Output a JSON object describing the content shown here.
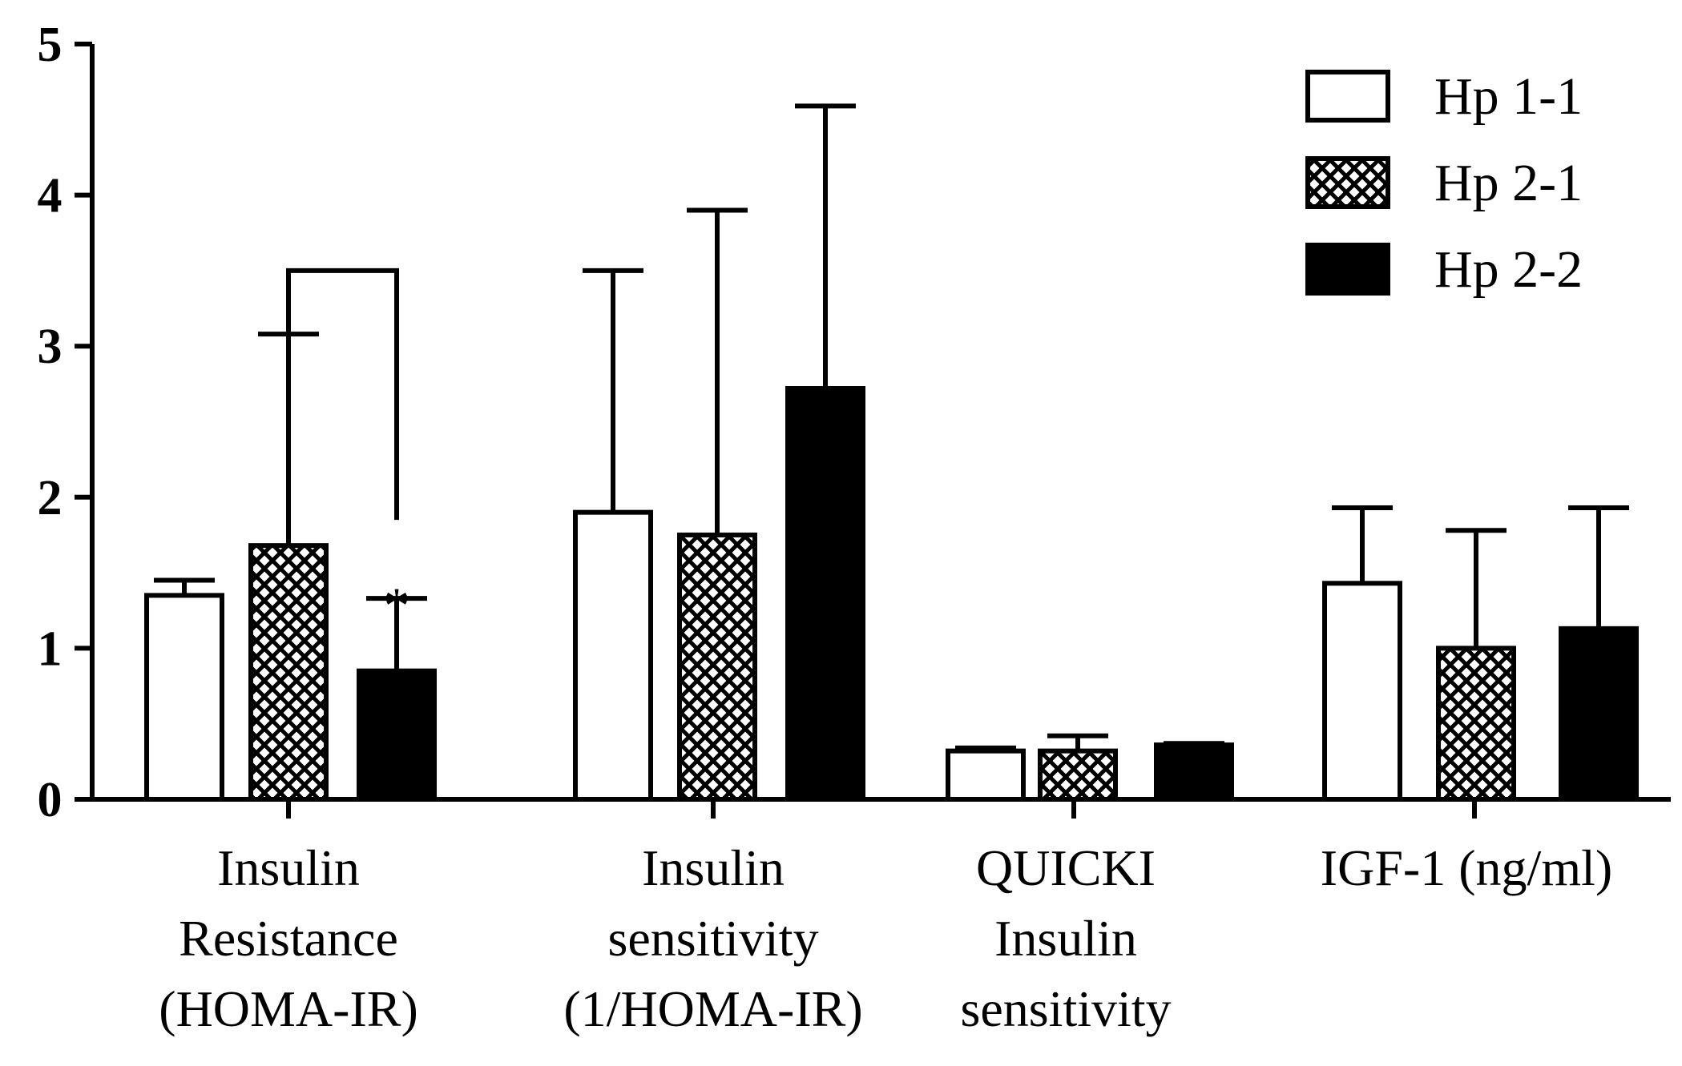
{
  "chart_data": {
    "type": "bar",
    "categories": [
      [
        "Insulin",
        "Resistance",
        "(HOMA-IR)"
      ],
      [
        "Insulin",
        "sensitivity",
        "(1/HOMA-IR)"
      ],
      [
        "QUICKI",
        "Insulin",
        "sensitivity"
      ],
      [
        "IGF-1 (ng/ml)"
      ]
    ],
    "series": [
      {
        "name": "Hp 1-1",
        "pattern": "open",
        "values": [
          1.35,
          1.9,
          0.32,
          1.43
        ],
        "errors": [
          0.1,
          1.6,
          0.02,
          0.5
        ]
      },
      {
        "name": "Hp 2-1",
        "pattern": "crosshatch",
        "values": [
          1.68,
          1.75,
          0.32,
          1.0
        ],
        "errors": [
          1.4,
          2.15,
          0.1,
          0.78
        ]
      },
      {
        "name": "Hp 2-2",
        "pattern": "solid",
        "values": [
          0.85,
          2.72,
          0.36,
          1.13
        ],
        "errors": [
          0.48,
          1.87,
          0.01,
          0.8
        ]
      }
    ],
    "yticks": [
      "0",
      "1",
      "2",
      "3",
      "4",
      "5"
    ],
    "ylim": [
      0,
      5
    ],
    "significance": {
      "category_index": 0,
      "from_series": 1,
      "to_series": 2,
      "label": "*"
    },
    "legend_position": "top-right",
    "grid": false
  },
  "colors": {
    "ink": "#000000",
    "fill_open": "#ffffff",
    "fill_solid": "#000000"
  }
}
